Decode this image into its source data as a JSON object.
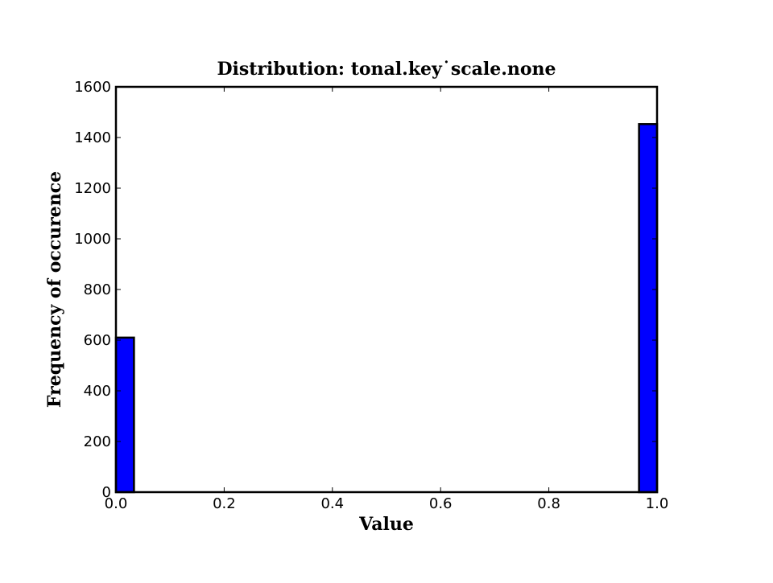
{
  "chart_data": {
    "type": "bar",
    "title": "Distribution: tonal.key˙scale.none",
    "xlabel": "Value",
    "ylabel": "Frequency of occurence",
    "xlim": [
      0.0,
      1.0
    ],
    "ylim": [
      0,
      1600
    ],
    "xticks": [
      "0.0",
      "0.2",
      "0.4",
      "0.6",
      "0.8",
      "1.0"
    ],
    "yticks": [
      "0",
      "200",
      "400",
      "600",
      "800",
      "1000",
      "1200",
      "1400",
      "1600"
    ],
    "bins": [
      {
        "x0": 0.0,
        "x1": 0.0333,
        "value": 610
      },
      {
        "x0": 0.9667,
        "x1": 1.0,
        "value": 1453
      }
    ],
    "bar_color": "#0000ff",
    "edge_color": "#000000",
    "grid": false,
    "legend": null
  }
}
